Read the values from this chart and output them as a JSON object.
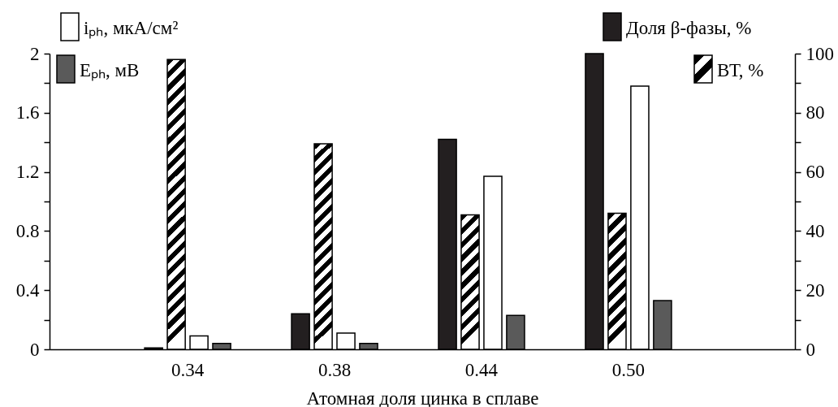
{
  "chart_data": {
    "type": "bar",
    "xlabel": "Атомная доля цинка в сплаве",
    "categories": [
      "0.34",
      "0.38",
      "0.44",
      "0.50"
    ],
    "series": [
      {
        "name": "Доля β-фазы, %",
        "color": "#231f20",
        "axis": "y2",
        "values": [
          0.5,
          12,
          71,
          100
        ]
      },
      {
        "name": "ВТ, %",
        "color": "#000000",
        "axis": "y2",
        "values": [
          98,
          69.5,
          45.5,
          46
        ]
      },
      {
        "name": "iₚₕ, мкА/см²",
        "color": "#ffffff",
        "values": [
          0.09,
          0.11,
          1.17,
          1.78
        ]
      },
      {
        "name": "Eₚₕ, мВ",
        "color": "#5a5a5a",
        "values": [
          0.04,
          0.04,
          0.23,
          0.33
        ]
      }
    ],
    "ylim": [
      0,
      2
    ],
    "yticks": [
      0,
      {
        "value": 0.2,
        "label": null
      },
      0.4,
      {
        "value": 0.6,
        "label": null
      },
      0.8,
      {
        "value": 1.0,
        "label": null
      },
      1.2,
      {
        "value": 1.4,
        "label": null
      },
      1.6,
      {
        "value": 1.8,
        "label": null
      },
      2
    ],
    "y2lim": [
      0,
      100
    ],
    "y2ticks": [
      0,
      {
        "value": 10,
        "label": null
      },
      20,
      {
        "value": 30,
        "label": null
      },
      40,
      {
        "value": 50,
        "label": null
      },
      60,
      {
        "value": 70,
        "label": null
      },
      80,
      {
        "value": 90,
        "label": null
      },
      100
    ],
    "legend": "top"
  }
}
